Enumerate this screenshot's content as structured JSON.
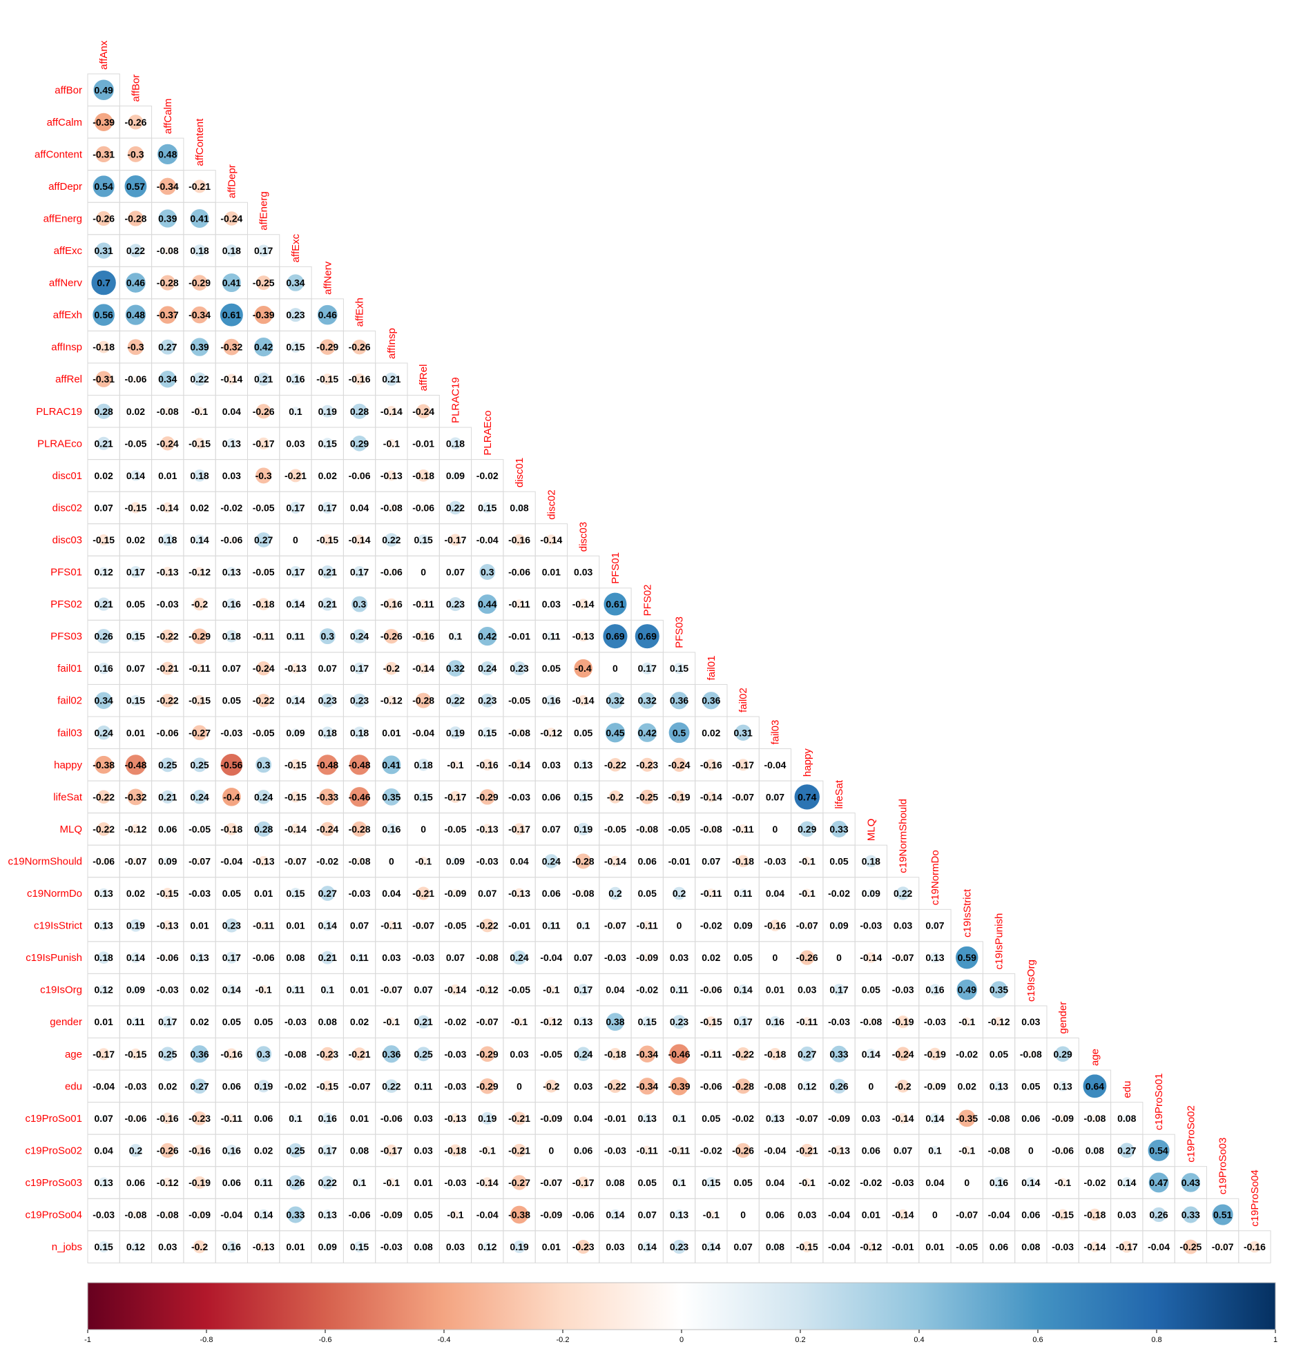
{
  "chart_data": {
    "type": "heatmap",
    "variables": [
      "affAnx",
      "affBor",
      "affCalm",
      "affContent",
      "affDepr",
      "affEnerg",
      "affExc",
      "affNerv",
      "affExh",
      "affInsp",
      "affRel",
      "PLRAC19",
      "PLRAEco",
      "disc01",
      "disc02",
      "disc03",
      "PFS01",
      "PFS02",
      "PFS03",
      "fail01",
      "fail02",
      "fail03",
      "happy",
      "lifeSat",
      "MLQ",
      "c19NormShould",
      "c19NormDo",
      "c19IsStrict",
      "c19IsPunish",
      "c19IsOrg",
      "gender",
      "age",
      "edu",
      "c19ProSo01",
      "c19ProSo02",
      "c19ProSo03",
      "c19ProSo04",
      "n_jobs"
    ],
    "rows": [
      "affBor",
      "affCalm",
      "affContent",
      "affDepr",
      "affEnerg",
      "affExc",
      "affNerv",
      "affExh",
      "affInsp",
      "affRel",
      "PLRAC19",
      "PLRAEco",
      "disc01",
      "disc02",
      "disc03",
      "PFS01",
      "PFS02",
      "PFS03",
      "fail01",
      "fail02",
      "fail03",
      "happy",
      "lifeSat",
      "MLQ",
      "c19NormShould",
      "c19NormDo",
      "c19IsStrict",
      "c19IsPunish",
      "c19IsOrg",
      "gender",
      "age",
      "edu",
      "c19ProSo01",
      "c19ProSo02",
      "c19ProSo03",
      "c19ProSo04",
      "n_jobs"
    ],
    "columns": [
      "affAnx",
      "affBor",
      "affCalm",
      "affContent",
      "affDepr",
      "affEnerg",
      "affExc",
      "affNerv",
      "affExh",
      "affInsp",
      "affRel",
      "PLRAC19",
      "PLRAEco",
      "disc01",
      "disc02",
      "disc03",
      "PFS01",
      "PFS02",
      "PFS03",
      "fail01",
      "fail02",
      "fail03",
      "happy",
      "lifeSat",
      "MLQ",
      "c19NormShould",
      "c19NormDo",
      "c19IsStrict",
      "c19IsPunish",
      "c19IsOrg",
      "gender",
      "age",
      "edu",
      "c19ProSo01",
      "c19ProSo02",
      "c19ProSo03",
      "c19ProSo04"
    ],
    "values": [
      [
        0.49
      ],
      [
        -0.39,
        -0.26
      ],
      [
        -0.31,
        -0.3,
        0.48
      ],
      [
        0.54,
        0.57,
        -0.34,
        -0.21
      ],
      [
        -0.26,
        -0.28,
        0.39,
        0.41,
        -0.24
      ],
      [
        0.31,
        0.22,
        -0.08,
        0.18,
        0.18,
        0.17
      ],
      [
        0.7,
        0.46,
        -0.28,
        -0.29,
        0.41,
        -0.25,
        0.34
      ],
      [
        0.56,
        0.48,
        -0.37,
        -0.34,
        0.61,
        -0.39,
        0.23,
        0.46
      ],
      [
        -0.18,
        -0.3,
        0.27,
        0.39,
        -0.32,
        0.42,
        0.15,
        -0.29,
        -0.26
      ],
      [
        -0.31,
        -0.06,
        0.34,
        0.22,
        -0.14,
        0.21,
        0.16,
        -0.15,
        -0.16,
        0.21
      ],
      [
        0.28,
        0.02,
        -0.08,
        -0.1,
        0.04,
        -0.26,
        0.1,
        0.19,
        0.28,
        -0.14,
        -0.24
      ],
      [
        0.21,
        -0.05,
        -0.24,
        -0.15,
        0.13,
        -0.17,
        0.03,
        0.15,
        0.29,
        -0.1,
        -0.01,
        0.18
      ],
      [
        0.02,
        0.14,
        0.01,
        0.18,
        0.03,
        -0.3,
        -0.21,
        0.02,
        -0.06,
        -0.13,
        -0.18,
        0.09,
        -0.02
      ],
      [
        0.07,
        -0.15,
        -0.14,
        0.02,
        -0.02,
        -0.05,
        0.17,
        0.17,
        0.04,
        -0.08,
        -0.06,
        0.22,
        0.15,
        0.08
      ],
      [
        -0.15,
        0.02,
        0.18,
        0.14,
        -0.06,
        0.27,
        0,
        -0.15,
        -0.14,
        0.22,
        0.15,
        -0.17,
        -0.04,
        -0.16,
        -0.14
      ],
      [
        0.12,
        0.17,
        -0.13,
        -0.12,
        0.13,
        -0.05,
        0.17,
        0.21,
        0.17,
        -0.06,
        0,
        0.07,
        0.3,
        -0.06,
        0.01,
        0.03
      ],
      [
        0.21,
        0.05,
        -0.03,
        -0.2,
        0.16,
        -0.18,
        0.14,
        0.21,
        0.3,
        -0.16,
        -0.11,
        0.23,
        0.44,
        -0.11,
        0.03,
        -0.14,
        0.61
      ],
      [
        0.26,
        0.15,
        -0.22,
        -0.29,
        0.18,
        -0.11,
        0.11,
        0.3,
        0.24,
        -0.26,
        -0.16,
        0.1,
        0.42,
        -0.01,
        0.11,
        -0.13,
        0.69,
        0.69
      ],
      [
        0.16,
        0.07,
        -0.21,
        -0.11,
        0.07,
        -0.24,
        -0.13,
        0.07,
        0.17,
        -0.2,
        -0.14,
        0.32,
        0.24,
        0.23,
        0.05,
        -0.4,
        0,
        0.17,
        0.15
      ],
      [
        0.34,
        0.15,
        -0.22,
        -0.15,
        0.05,
        -0.22,
        0.14,
        0.23,
        0.23,
        -0.12,
        -0.28,
        0.22,
        0.23,
        -0.05,
        0.16,
        -0.14,
        0.32,
        0.32,
        0.36,
        0.36
      ],
      [
        0.24,
        0.01,
        -0.06,
        -0.27,
        -0.03,
        -0.05,
        0.09,
        0.18,
        0.18,
        0.01,
        -0.04,
        0.19,
        0.15,
        -0.08,
        -0.12,
        0.05,
        0.45,
        0.42,
        0.5,
        0.02,
        0.31
      ],
      [
        -0.38,
        -0.48,
        0.25,
        0.25,
        -0.56,
        0.3,
        -0.15,
        -0.48,
        -0.48,
        0.41,
        0.18,
        -0.1,
        -0.16,
        -0.14,
        0.03,
        0.13,
        -0.22,
        -0.23,
        -0.24,
        -0.16,
        -0.17,
        -0.04
      ],
      [
        -0.22,
        -0.32,
        0.21,
        0.24,
        -0.4,
        0.24,
        -0.15,
        -0.33,
        -0.46,
        0.35,
        0.15,
        -0.17,
        -0.29,
        -0.03,
        0.06,
        0.15,
        -0.2,
        -0.25,
        -0.19,
        -0.14,
        -0.07,
        0.07,
        0.74
      ],
      [
        -0.22,
        -0.12,
        0.06,
        -0.05,
        -0.18,
        0.28,
        -0.14,
        -0.24,
        -0.28,
        0.16,
        0,
        -0.05,
        -0.13,
        -0.17,
        0.07,
        0.19,
        -0.05,
        -0.08,
        -0.05,
        -0.08,
        -0.11,
        0,
        0.29,
        0.33
      ],
      [
        -0.06,
        -0.07,
        0.09,
        -0.07,
        -0.04,
        -0.13,
        -0.07,
        -0.02,
        -0.08,
        0,
        -0.1,
        0.09,
        -0.03,
        0.04,
        0.24,
        -0.28,
        -0.14,
        0.06,
        -0.01,
        0.07,
        -0.18,
        -0.03,
        -0.1,
        0.05,
        0.18
      ],
      [
        0.13,
        0.02,
        -0.15,
        -0.03,
        0.05,
        0.01,
        0.15,
        0.27,
        -0.03,
        0.04,
        -0.21,
        -0.09,
        0.07,
        -0.13,
        0.06,
        -0.08,
        0.2,
        0.05,
        0.2,
        -0.11,
        0.11,
        0.04,
        -0.1,
        -0.02,
        0.09,
        0.22
      ],
      [
        0.13,
        0.19,
        -0.13,
        0.01,
        0.23,
        -0.11,
        0.01,
        0.14,
        0.07,
        -0.11,
        -0.07,
        -0.05,
        -0.22,
        -0.01,
        0.11,
        0.1,
        -0.07,
        -0.11,
        0,
        -0.02,
        0.09,
        -0.16,
        -0.07,
        0.09,
        -0.03,
        0.03,
        0.07
      ],
      [
        0.18,
        0.14,
        -0.06,
        0.13,
        0.17,
        -0.06,
        0.08,
        0.21,
        0.11,
        0.03,
        -0.03,
        0.07,
        -0.08,
        0.24,
        -0.04,
        0.07,
        -0.03,
        -0.09,
        0.03,
        0.02,
        0.05,
        0,
        -0.26,
        0,
        -0.14,
        -0.07,
        0.13,
        0.59
      ],
      [
        0.12,
        0.09,
        -0.03,
        0.02,
        0.14,
        -0.1,
        0.11,
        0.1,
        0.01,
        -0.07,
        0.07,
        -0.14,
        -0.12,
        -0.05,
        -0.1,
        0.17,
        0.04,
        -0.02,
        0.11,
        -0.06,
        0.14,
        0.01,
        0.03,
        0.17,
        0.05,
        -0.03,
        0.16,
        0.49,
        0.35
      ],
      [
        0.01,
        0.11,
        0.17,
        0.02,
        0.05,
        0.05,
        -0.03,
        0.08,
        0.02,
        -0.1,
        0.21,
        -0.02,
        -0.07,
        -0.1,
        -0.12,
        0.13,
        0.38,
        0.15,
        0.23,
        -0.15,
        0.17,
        0.16,
        -0.11,
        -0.03,
        -0.08,
        -0.19,
        -0.03,
        -0.1,
        -0.12,
        0.03
      ],
      [
        -0.17,
        -0.15,
        0.25,
        0.36,
        -0.16,
        0.3,
        -0.08,
        -0.23,
        -0.21,
        0.36,
        0.25,
        -0.03,
        -0.29,
        0.03,
        -0.05,
        0.24,
        -0.18,
        -0.34,
        -0.46,
        -0.11,
        -0.22,
        -0.18,
        0.27,
        0.33,
        0.14,
        -0.24,
        -0.19,
        -0.02,
        0.05,
        -0.08,
        0.29
      ],
      [
        -0.04,
        -0.03,
        0.02,
        0.27,
        0.06,
        0.19,
        -0.02,
        -0.15,
        -0.07,
        0.22,
        0.11,
        -0.03,
        -0.29,
        0,
        -0.2,
        0.03,
        -0.22,
        -0.34,
        -0.39,
        -0.06,
        -0.28,
        -0.08,
        0.12,
        0.26,
        0,
        -0.2,
        -0.09,
        0.02,
        0.13,
        0.05,
        0.13,
        0.64
      ],
      [
        0.07,
        -0.06,
        -0.16,
        -0.23,
        -0.11,
        0.06,
        0.1,
        0.16,
        0.01,
        -0.06,
        0.03,
        -0.13,
        0.19,
        -0.21,
        -0.09,
        0.04,
        -0.01,
        0.13,
        0.1,
        0.05,
        -0.02,
        0.13,
        -0.07,
        -0.09,
        0.03,
        -0.14,
        0.14,
        -0.35,
        -0.08,
        0.06,
        -0.09,
        -0.08,
        0.08
      ],
      [
        0.04,
        0.2,
        -0.26,
        -0.16,
        0.16,
        0.02,
        0.25,
        0.17,
        0.08,
        -0.17,
        0.03,
        -0.18,
        -0.1,
        -0.21,
        0,
        0.06,
        -0.03,
        -0.11,
        -0.11,
        -0.02,
        -0.26,
        -0.04,
        -0.21,
        -0.13,
        0.06,
        0.07,
        0.1,
        -0.1,
        -0.08,
        0,
        -0.06,
        0.08,
        0.27,
        0.54
      ],
      [
        0.13,
        0.06,
        -0.12,
        -0.19,
        0.06,
        0.11,
        0.26,
        0.22,
        0.1,
        -0.1,
        0.01,
        -0.03,
        -0.14,
        -0.27,
        -0.07,
        -0.17,
        0.08,
        0.05,
        0.1,
        0.15,
        0.05,
        0.04,
        -0.1,
        -0.02,
        -0.02,
        -0.03,
        0.04,
        0,
        0.16,
        0.14,
        -0.1,
        -0.02,
        0.14,
        0.47,
        0.43
      ],
      [
        -0.03,
        -0.08,
        -0.08,
        -0.09,
        -0.04,
        0.14,
        0.33,
        0.13,
        -0.06,
        -0.09,
        0.05,
        -0.1,
        -0.04,
        -0.38,
        -0.09,
        -0.06,
        0.14,
        0.07,
        0.13,
        -0.1,
        0,
        0.06,
        0.03,
        -0.04,
        0.01,
        -0.14,
        0,
        -0.07,
        -0.04,
        0.06,
        -0.15,
        -0.18,
        0.03,
        0.26,
        0.33,
        0.51
      ],
      [
        0.15,
        0.12,
        0.03,
        -0.2,
        0.16,
        -0.13,
        0.01,
        0.09,
        0.15,
        -0.03,
        0.08,
        0.03,
        0.12,
        0.19,
        0.01,
        -0.23,
        0.03,
        0.14,
        0.23,
        0.14,
        0.07,
        0.08,
        -0.15,
        -0.04,
        -0.12,
        -0.01,
        0.01,
        -0.05,
        0.06,
        0.08,
        -0.03,
        -0.14,
        -0.17,
        -0.04,
        -0.25,
        -0.07,
        -0.16
      ]
    ],
    "colorbar": {
      "range": [
        -1,
        1
      ],
      "ticks": [
        -1,
        -0.8,
        -0.6,
        -0.4,
        -0.2,
        0,
        0.2,
        0.4,
        0.6,
        0.8,
        1
      ],
      "tick_labels": [
        "-1",
        "-0.8",
        "-0.6",
        "-0.4",
        "-0.2",
        "0",
        "0.2",
        "0.4",
        "0.6",
        "0.8",
        "1"
      ],
      "stops": [
        "#67001F",
        "#B2182B",
        "#D6604D",
        "#F4A582",
        "#FDDBC7",
        "#FFFFFF",
        "#D1E5F0",
        "#92C5DE",
        "#4393C3",
        "#2166AC",
        "#053061"
      ],
      "position": "bottom"
    },
    "grid": true,
    "label_color": "#FF0000"
  }
}
